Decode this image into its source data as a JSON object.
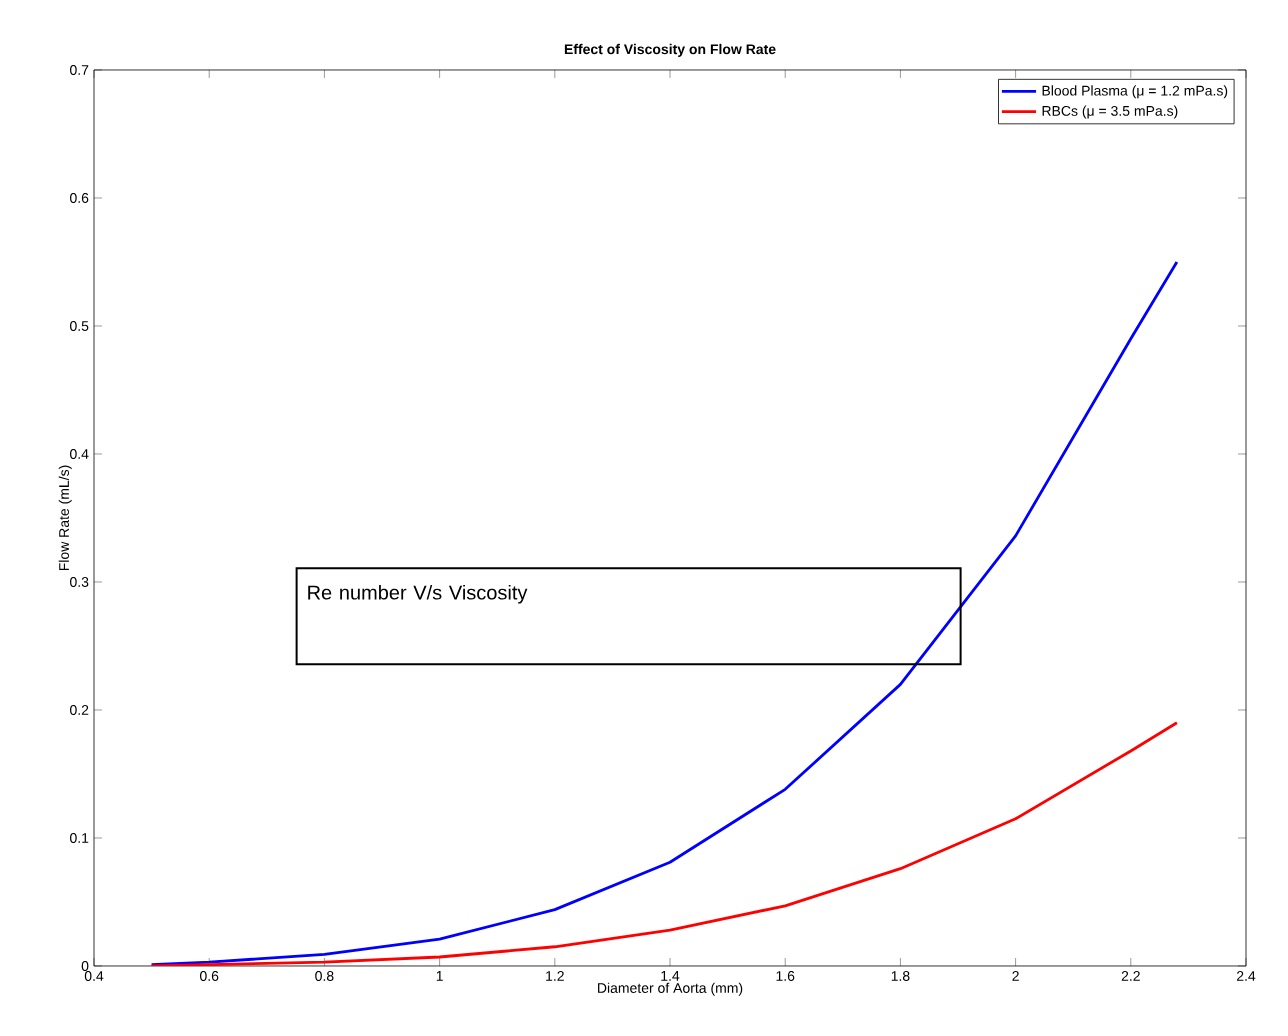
{
  "chart_data": {
    "type": "line",
    "title": "Effect of Viscosity on Flow Rate",
    "xlabel": "Diameter of Aorta (mm)",
    "ylabel": "Flow Rate (mL/s)",
    "x": [
      0.5,
      0.6,
      0.8,
      1.0,
      1.2,
      1.4,
      1.6,
      1.8,
      2.0,
      2.2,
      2.28
    ],
    "series": [
      {
        "name": "Blood Plasma (μ = 1.2 mPa.s)",
        "color": "#0000ff",
        "values": [
          0.001,
          0.003,
          0.009,
          0.021,
          0.044,
          0.081,
          0.138,
          0.22,
          0.336,
          0.49,
          0.55
        ]
      },
      {
        "name": "RBCs (μ = 3.5 mPa.s)",
        "color": "#ff0000",
        "values": [
          0.0,
          0.001,
          0.003,
          0.007,
          0.015,
          0.028,
          0.047,
          0.076,
          0.115,
          0.168,
          0.19
        ]
      }
    ],
    "xlim": [
      0.4,
      2.4
    ],
    "xticks": [
      0.4,
      0.6,
      0.8,
      1,
      1.2,
      1.4,
      1.6,
      1.8,
      2,
      2.2,
      2.4
    ],
    "ylim": [
      0,
      0.7
    ],
    "yticks": [
      0,
      0.1,
      0.2,
      0.3,
      0.4,
      0.5,
      0.6,
      0.7
    ],
    "grid": false,
    "legend": "top right",
    "marker": "none",
    "line_style": "solid",
    "annotations": [
      "Re number V/s Viscosity"
    ]
  }
}
